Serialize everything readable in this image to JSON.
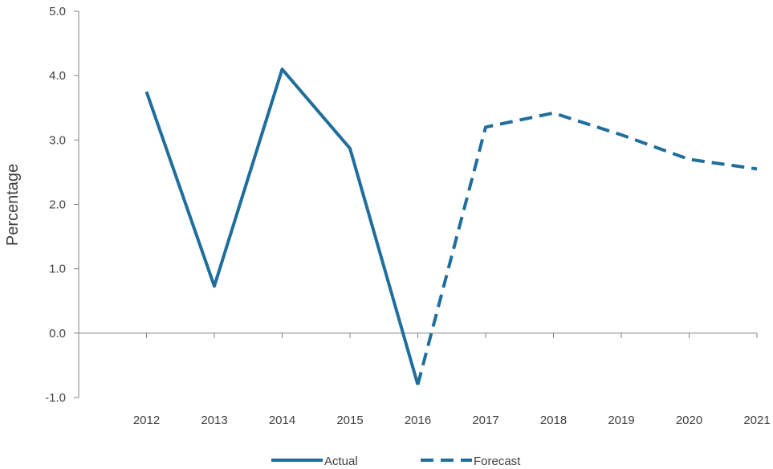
{
  "chart_data": {
    "type": "line",
    "title": "",
    "xlabel": "",
    "ylabel": "Percentage",
    "x": [
      2012,
      2013,
      2014,
      2015,
      2016,
      2017,
      2018,
      2019,
      2020,
      2021
    ],
    "ylim": [
      -1.0,
      5.0
    ],
    "yticks": [
      "-1.0",
      "0.0",
      "1.0",
      "2.0",
      "3.0",
      "4.0",
      "5.0"
    ],
    "xticks": [
      "2012",
      "2013",
      "2014",
      "2015",
      "2016",
      "2017",
      "2018",
      "2019",
      "2020",
      "2021"
    ],
    "series": [
      {
        "name": "Actual",
        "style": "solid",
        "color": "#1f6e9c",
        "x": [
          2012,
          2013,
          2014,
          2015,
          2016
        ],
        "values": [
          3.75,
          0.73,
          4.1,
          2.87,
          -0.8
        ]
      },
      {
        "name": "Forecast",
        "style": "dashed",
        "color": "#1f6e9c",
        "x": [
          2016,
          2017,
          2018,
          2019,
          2020,
          2021
        ],
        "values": [
          -0.8,
          3.2,
          3.42,
          3.08,
          2.7,
          2.55
        ]
      }
    ],
    "grid": false,
    "legend_position": "bottom"
  }
}
